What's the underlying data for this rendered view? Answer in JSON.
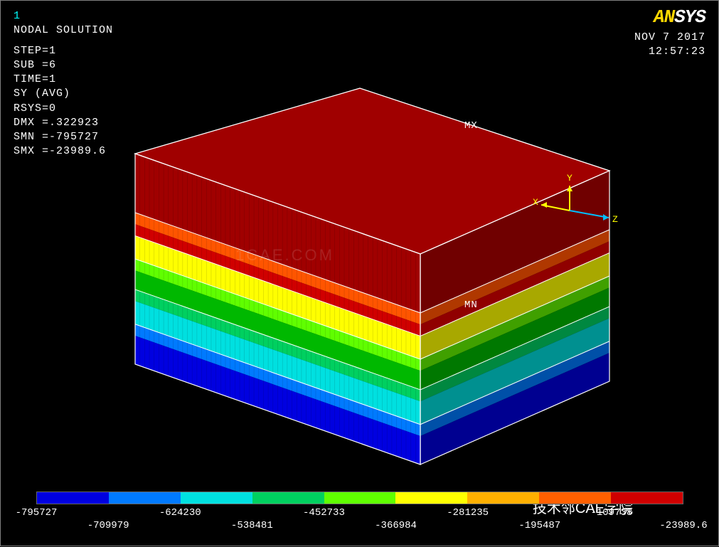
{
  "window_number": "1",
  "info": {
    "title": "NODAL SOLUTION",
    "step": "STEP=1",
    "sub": "SUB =6",
    "time": "TIME=1",
    "var": "SY       (AVG)",
    "rsys": "RSYS=0",
    "dmx": "DMX =.322923",
    "smn": "SMN =-795727",
    "smx": "SMX =-23989.6"
  },
  "logo": {
    "left": "AN",
    "right": "SYS"
  },
  "datetime": {
    "date": "NOV  7 2017",
    "time": "12:57:23"
  },
  "annotations": {
    "max": "MX",
    "min": "MN"
  },
  "triad": {
    "x": "X",
    "y": "Y",
    "z": "Z"
  },
  "legend": {
    "colors": [
      "#0000e0",
      "#007aff",
      "#00e0e0",
      "#00d060",
      "#60ff00",
      "#ffff00",
      "#ffb000",
      "#ff6000",
      "#d00000"
    ],
    "labels": [
      "-795727",
      "-709979",
      "-624230",
      "-538481",
      "-452733",
      "-366984",
      "-281235",
      "-195487",
      "-109738",
      "-23989.6"
    ]
  },
  "model": {
    "top_color": "#a00000",
    "front_bands": [
      {
        "color": "#a00000",
        "h": 0.28,
        "mesh": true,
        "wire": false
      },
      {
        "color": "#ff5500",
        "h": 0.055,
        "mesh": true,
        "wire": true
      },
      {
        "color": "#d00000",
        "h": 0.055,
        "mesh": true,
        "wire": false
      },
      {
        "color": "#ffff00",
        "h": 0.11,
        "mesh": true,
        "wire": true
      },
      {
        "color": "#60ff00",
        "h": 0.055,
        "mesh": true,
        "wire": true
      },
      {
        "color": "#00b800",
        "h": 0.09,
        "mesh": false,
        "wire": false
      },
      {
        "color": "#00d060",
        "h": 0.055,
        "mesh": true,
        "wire": true
      },
      {
        "color": "#00e0e0",
        "h": 0.11,
        "mesh": true,
        "wire": false
      },
      {
        "color": "#007aff",
        "h": 0.055,
        "mesh": true,
        "wire": true
      },
      {
        "color": "#0000e0",
        "h": 0.135,
        "mesh": true,
        "wire": false
      }
    ],
    "right_bands": [
      {
        "color": "#700000",
        "h": 0.28
      },
      {
        "color": "#b03800",
        "h": 0.055
      },
      {
        "color": "#900000",
        "h": 0.055
      },
      {
        "color": "#a8a800",
        "h": 0.11
      },
      {
        "color": "#40a000",
        "h": 0.055
      },
      {
        "color": "#007800",
        "h": 0.09
      },
      {
        "color": "#008840",
        "h": 0.055
      },
      {
        "color": "#009090",
        "h": 0.11
      },
      {
        "color": "#0050a8",
        "h": 0.055
      },
      {
        "color": "#000090",
        "h": 0.135
      }
    ],
    "geom": {
      "top": {
        "p1": [
          505,
          123
        ],
        "p2": [
          856,
          239
        ],
        "p3": [
          590,
          356
        ],
        "p4": [
          189,
          215
        ]
      },
      "front": {
        "p1": [
          189,
          215
        ],
        "p2": [
          590,
          356
        ],
        "p3": [
          590,
          652
        ],
        "p4": [
          189,
          511
        ]
      },
      "right": {
        "p1": [
          590,
          356
        ],
        "p2": [
          856,
          239
        ],
        "p3": [
          856,
          535
        ],
        "p4": [
          590,
          652
        ]
      }
    },
    "wire_color": "#ffffff"
  },
  "watermarks": {
    "center": "1CAE.COM",
    "bottom": "技术邻CAE学院"
  }
}
